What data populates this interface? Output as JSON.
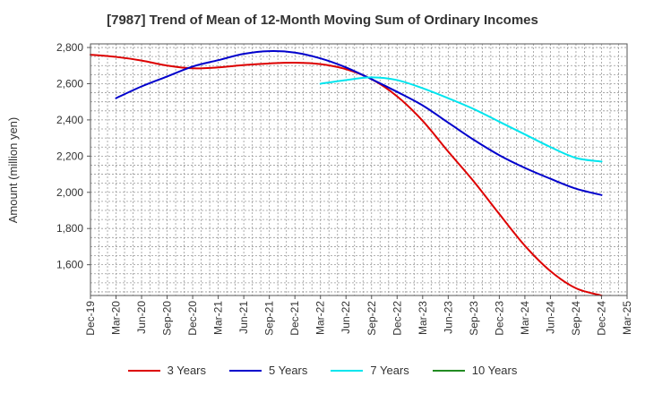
{
  "chart_data": {
    "type": "line",
    "title": "[7987]  Trend of Mean of 12-Month Moving Sum of Ordinary Incomes",
    "xlabel": "",
    "ylabel": "Amount (million yen)",
    "ylim": [
      1430,
      2820
    ],
    "yticks": [
      1600,
      1800,
      2000,
      2200,
      2400,
      2600,
      2800
    ],
    "ytick_labels": [
      "1,600",
      "1,800",
      "2,000",
      "2,200",
      "2,400",
      "2,600",
      "2,800"
    ],
    "categories": [
      "Dec-19",
      "Mar-20",
      "Jun-20",
      "Sep-20",
      "Dec-20",
      "Mar-21",
      "Jun-21",
      "Sep-21",
      "Dec-21",
      "Mar-22",
      "Jun-22",
      "Sep-22",
      "Dec-22",
      "Mar-23",
      "Jun-23",
      "Sep-23",
      "Dec-23",
      "Mar-24",
      "Jun-24",
      "Sep-24",
      "Dec-24",
      "Mar-25"
    ],
    "grid": true,
    "series": [
      {
        "name": "3 Years",
        "color": "#dd0000",
        "values": [
          2760,
          2748,
          2728,
          2700,
          2685,
          2690,
          2703,
          2712,
          2716,
          2708,
          2680,
          2625,
          2530,
          2395,
          2225,
          2060,
          1880,
          1705,
          1565,
          1470,
          1430,
          null
        ]
      },
      {
        "name": "5 Years",
        "color": "#0000cc",
        "values": [
          null,
          2520,
          2585,
          2640,
          2695,
          2730,
          2765,
          2780,
          2772,
          2740,
          2690,
          2625,
          2555,
          2480,
          2385,
          2290,
          2205,
          2135,
          2075,
          2020,
          1985,
          null
        ]
      },
      {
        "name": "7 Years",
        "color": "#00e5ee",
        "values": [
          null,
          null,
          null,
          null,
          null,
          null,
          null,
          null,
          null,
          2600,
          2620,
          2635,
          2620,
          2575,
          2520,
          2460,
          2390,
          2320,
          2250,
          2190,
          2170,
          null
        ]
      },
      {
        "name": "10 Years",
        "color": "#228b22",
        "values": [
          null,
          null,
          null,
          null,
          null,
          null,
          null,
          null,
          null,
          null,
          null,
          null,
          null,
          null,
          null,
          null,
          null,
          null,
          null,
          null,
          null,
          null
        ]
      }
    ],
    "legend": "bottom"
  }
}
